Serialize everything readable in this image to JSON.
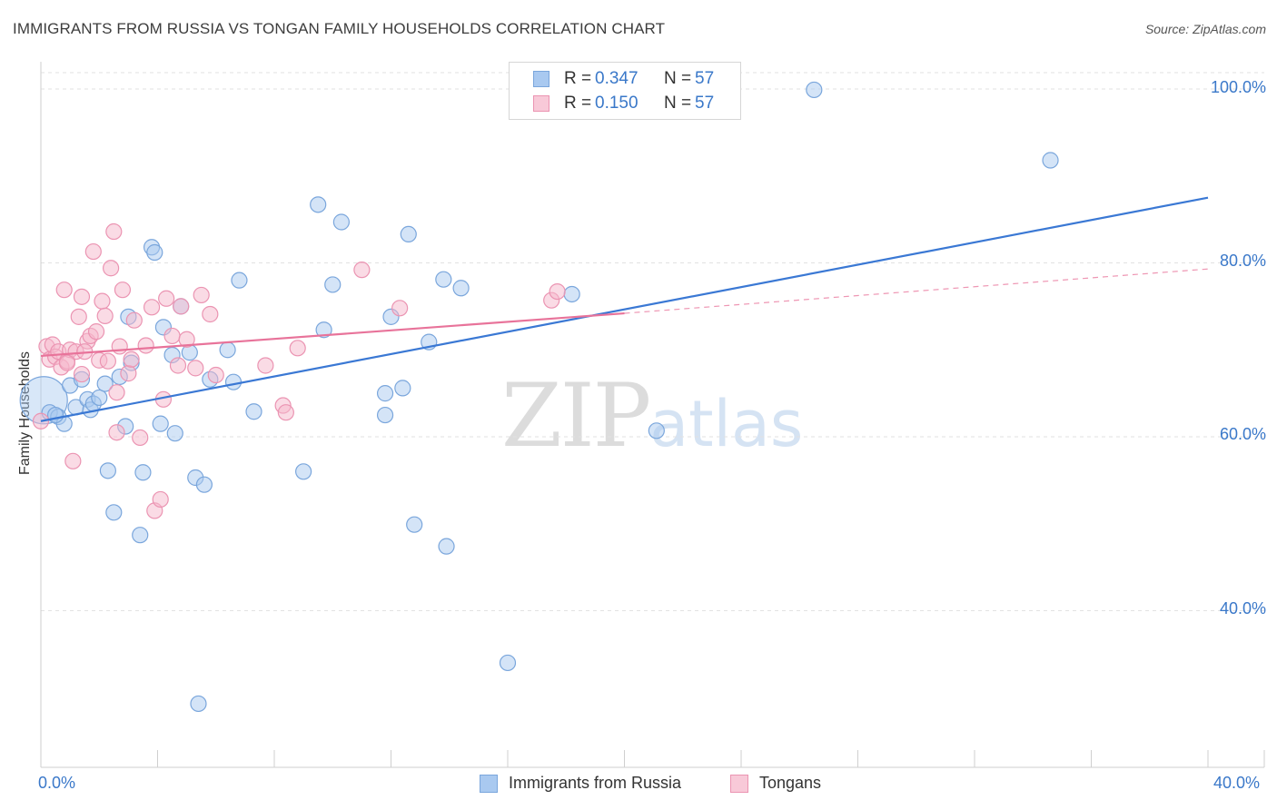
{
  "header": {
    "title": "IMMIGRANTS FROM RUSSIA VS TONGAN FAMILY HOUSEHOLDS CORRELATION CHART",
    "source": "Source: ZipAtlas.com"
  },
  "watermark": {
    "zip": "ZIP",
    "atlas": "atlas"
  },
  "legend": {
    "rows": [
      {
        "r_label": "R = ",
        "r_value": "0.347",
        "n_label": "N = ",
        "n_value": "57"
      },
      {
        "r_label": "R = ",
        "r_value": "0.150",
        "n_label": "N = ",
        "n_value": "57"
      }
    ]
  },
  "x_axis": {
    "min_label": "0.0%",
    "max_label": "40.0%"
  },
  "y_axis": {
    "label": "Family Households",
    "ticks": [
      "100.0%",
      "80.0%",
      "60.0%",
      "40.0%"
    ]
  },
  "bottom_legend": {
    "series1": "Immigrants from Russia",
    "series2": "Tongans"
  },
  "colors": {
    "blue_fill": "#a9c9f0",
    "blue_stroke": "#7aa6dc",
    "blue_line": "#3a78d4",
    "pink_fill": "#f5b8cc",
    "pink_stroke": "#eb94b2",
    "pink_line": "#e8739a",
    "axis_text": "#3a78c9",
    "grid": "#e2e2e2"
  },
  "chart_data": {
    "type": "scatter",
    "title": "IMMIGRANTS FROM RUSSIA VS TONGAN FAMILY HOUSEHOLDS CORRELATION CHART",
    "xlabel": "",
    "ylabel": "Family Households",
    "xlim": [
      0,
      40
    ],
    "ylim": [
      21,
      102
    ],
    "x_ticks": [
      0,
      4,
      8,
      12,
      16,
      20,
      24,
      28,
      32,
      36,
      40
    ],
    "y_ticks": [
      40,
      60,
      80,
      100
    ],
    "legend_position": "top-center",
    "series": [
      {
        "name": "Immigrants from Russia",
        "R": 0.347,
        "N": 57,
        "trend": {
          "x": [
            0,
            40
          ],
          "y": [
            61.8,
            87.5
          ],
          "style": "solid"
        },
        "points": [
          {
            "x": 0.1,
            "y": 64.2,
            "big": true
          },
          {
            "x": 0.3,
            "y": 62.8
          },
          {
            "x": 0.6,
            "y": 62.3
          },
          {
            "x": 0.8,
            "y": 61.5
          },
          {
            "x": 1.0,
            "y": 65.9
          },
          {
            "x": 1.2,
            "y": 63.4
          },
          {
            "x": 1.4,
            "y": 66.6
          },
          {
            "x": 1.6,
            "y": 64.3
          },
          {
            "x": 1.7,
            "y": 63.1
          },
          {
            "x": 1.8,
            "y": 63.8
          },
          {
            "x": 2.0,
            "y": 64.5
          },
          {
            "x": 2.2,
            "y": 66.1
          },
          {
            "x": 2.3,
            "y": 56.1
          },
          {
            "x": 2.5,
            "y": 51.3
          },
          {
            "x": 2.7,
            "y": 66.9
          },
          {
            "x": 2.9,
            "y": 61.2
          },
          {
            "x": 3.0,
            "y": 73.8
          },
          {
            "x": 3.1,
            "y": 68.5
          },
          {
            "x": 3.4,
            "y": 48.7
          },
          {
            "x": 3.5,
            "y": 55.9
          },
          {
            "x": 3.8,
            "y": 81.8
          },
          {
            "x": 3.9,
            "y": 81.2
          },
          {
            "x": 4.1,
            "y": 61.5
          },
          {
            "x": 4.2,
            "y": 72.6
          },
          {
            "x": 4.5,
            "y": 69.4
          },
          {
            "x": 4.6,
            "y": 60.4
          },
          {
            "x": 4.8,
            "y": 75.0
          },
          {
            "x": 5.1,
            "y": 69.7
          },
          {
            "x": 5.3,
            "y": 55.3
          },
          {
            "x": 5.6,
            "y": 54.5
          },
          {
            "x": 5.8,
            "y": 66.6
          },
          {
            "x": 6.4,
            "y": 70.0
          },
          {
            "x": 6.6,
            "y": 66.3
          },
          {
            "x": 6.8,
            "y": 78.0
          },
          {
            "x": 5.4,
            "y": 29.3
          },
          {
            "x": 7.3,
            "y": 62.9
          },
          {
            "x": 9.0,
            "y": 56.0
          },
          {
            "x": 9.5,
            "y": 86.7
          },
          {
            "x": 10.0,
            "y": 77.5
          },
          {
            "x": 10.3,
            "y": 84.7
          },
          {
            "x": 9.7,
            "y": 72.3
          },
          {
            "x": 11.8,
            "y": 65.0
          },
          {
            "x": 11.8,
            "y": 62.5
          },
          {
            "x": 12.0,
            "y": 73.8
          },
          {
            "x": 12.4,
            "y": 65.6
          },
          {
            "x": 12.6,
            "y": 83.3
          },
          {
            "x": 12.8,
            "y": 49.9
          },
          {
            "x": 13.3,
            "y": 70.9
          },
          {
            "x": 13.8,
            "y": 78.1
          },
          {
            "x": 13.9,
            "y": 47.4
          },
          {
            "x": 14.4,
            "y": 77.1
          },
          {
            "x": 16.0,
            "y": 34.0
          },
          {
            "x": 18.2,
            "y": 76.4
          },
          {
            "x": 21.1,
            "y": 60.7
          },
          {
            "x": 26.5,
            "y": 99.9
          },
          {
            "x": 34.6,
            "y": 91.8
          },
          {
            "x": 0.5,
            "y": 62.5
          }
        ]
      },
      {
        "name": "Tongans",
        "R": 0.15,
        "N": 57,
        "trend": {
          "x": [
            0,
            20
          ],
          "y": [
            69.3,
            74.2
          ],
          "style": "solid",
          "extended_dashed_to": {
            "x": 40,
            "y": 79.3
          }
        },
        "points": [
          {
            "x": 0.0,
            "y": 61.8
          },
          {
            "x": 0.2,
            "y": 70.4
          },
          {
            "x": 0.3,
            "y": 68.9
          },
          {
            "x": 0.4,
            "y": 70.6
          },
          {
            "x": 0.5,
            "y": 69.2
          },
          {
            "x": 0.6,
            "y": 69.8
          },
          {
            "x": 0.7,
            "y": 68.0
          },
          {
            "x": 0.8,
            "y": 76.9
          },
          {
            "x": 0.9,
            "y": 68.7
          },
          {
            "x": 1.0,
            "y": 70.0
          },
          {
            "x": 1.1,
            "y": 57.2
          },
          {
            "x": 1.2,
            "y": 69.8
          },
          {
            "x": 1.3,
            "y": 73.8
          },
          {
            "x": 1.4,
            "y": 67.2
          },
          {
            "x": 1.4,
            "y": 76.1
          },
          {
            "x": 1.6,
            "y": 71.0
          },
          {
            "x": 1.7,
            "y": 71.6
          },
          {
            "x": 1.8,
            "y": 81.3
          },
          {
            "x": 1.9,
            "y": 72.1
          },
          {
            "x": 2.0,
            "y": 68.8
          },
          {
            "x": 2.1,
            "y": 75.6
          },
          {
            "x": 2.2,
            "y": 73.9
          },
          {
            "x": 2.3,
            "y": 68.7
          },
          {
            "x": 2.4,
            "y": 79.4
          },
          {
            "x": 2.5,
            "y": 83.6
          },
          {
            "x": 2.6,
            "y": 65.1
          },
          {
            "x": 2.6,
            "y": 60.5
          },
          {
            "x": 2.7,
            "y": 70.4
          },
          {
            "x": 2.8,
            "y": 76.9
          },
          {
            "x": 3.0,
            "y": 67.3
          },
          {
            "x": 3.2,
            "y": 73.4
          },
          {
            "x": 3.4,
            "y": 59.9
          },
          {
            "x": 3.6,
            "y": 70.5
          },
          {
            "x": 3.8,
            "y": 74.9
          },
          {
            "x": 3.9,
            "y": 51.5
          },
          {
            "x": 4.1,
            "y": 52.8
          },
          {
            "x": 4.2,
            "y": 64.3
          },
          {
            "x": 4.3,
            "y": 75.9
          },
          {
            "x": 4.5,
            "y": 71.6
          },
          {
            "x": 4.7,
            "y": 68.2
          },
          {
            "x": 4.8,
            "y": 75.0
          },
          {
            "x": 5.0,
            "y": 71.2
          },
          {
            "x": 5.3,
            "y": 67.9
          },
          {
            "x": 5.5,
            "y": 76.3
          },
          {
            "x": 5.8,
            "y": 74.1
          },
          {
            "x": 6.0,
            "y": 67.1
          },
          {
            "x": 7.7,
            "y": 68.2
          },
          {
            "x": 8.3,
            "y": 63.6
          },
          {
            "x": 8.4,
            "y": 62.8
          },
          {
            "x": 8.8,
            "y": 70.2
          },
          {
            "x": 11.0,
            "y": 79.2
          },
          {
            "x": 12.3,
            "y": 74.8
          },
          {
            "x": 17.5,
            "y": 75.7
          },
          {
            "x": 17.7,
            "y": 76.7
          },
          {
            "x": 1.5,
            "y": 69.8
          },
          {
            "x": 3.1,
            "y": 68.9
          },
          {
            "x": 0.9,
            "y": 68.5
          }
        ]
      }
    ]
  }
}
